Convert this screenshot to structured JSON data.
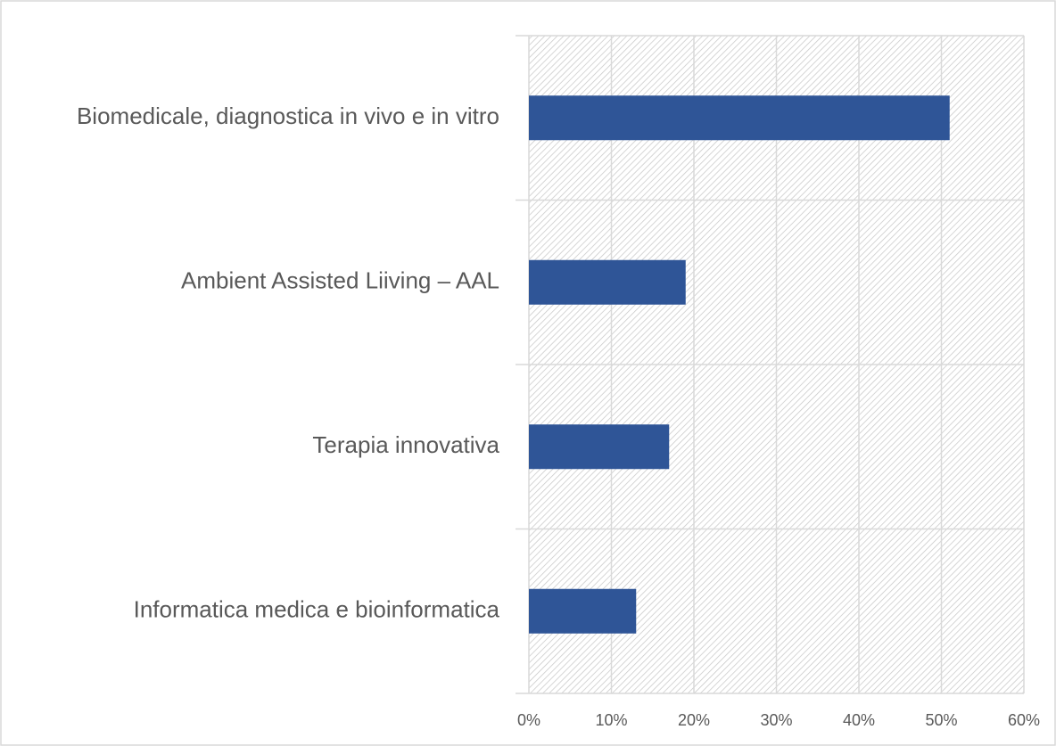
{
  "chart_data": {
    "type": "bar",
    "orientation": "horizontal",
    "categories": [
      "Biomedicale, diagnostica in vivo e in vitro",
      "Ambient Assisted Liiving – AAL",
      "Terapia innovativa",
      "Informatica medica e bioinformatica"
    ],
    "values": [
      51,
      19,
      17,
      13
    ],
    "color": "#2f5597",
    "xlim": [
      0,
      60
    ],
    "xticks": [
      {
        "value": 0,
        "label": "0%"
      },
      {
        "value": 10,
        "label": "10%"
      },
      {
        "value": 20,
        "label": "20%"
      },
      {
        "value": 30,
        "label": "30%"
      },
      {
        "value": 40,
        "label": "40%"
      },
      {
        "value": 50,
        "label": "50%"
      },
      {
        "value": 60,
        "label": "60%"
      }
    ],
    "grid": true
  }
}
